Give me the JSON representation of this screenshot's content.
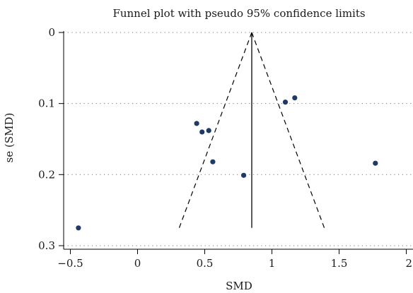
{
  "chart_data": {
    "type": "scatter",
    "title": "Funnel plot with pseudo 95% confidence limits",
    "xlabel": "SMD",
    "ylabel": "se (SMD)",
    "xlim": [
      -0.55,
      2.05
    ],
    "ylim": [
      0,
      0.305
    ],
    "y_reversed": true,
    "x_ticks": [
      -0.5,
      0,
      0.5,
      1,
      1.5,
      2
    ],
    "x_tick_labels": [
      "−0.5",
      "0",
      "0.5",
      "1",
      "1.5",
      "2"
    ],
    "y_ticks": [
      0,
      0.1,
      0.2,
      0.3
    ],
    "y_tick_labels": [
      "0",
      "0.1",
      "0.2",
      "0.3"
    ],
    "grid": "horizontal dotted",
    "pooled_estimate": 0.85,
    "pooled_line": {
      "x": 0.85,
      "se_from": 0,
      "se_to": 0.275
    },
    "confidence_limits": {
      "apex": {
        "x": 0.85,
        "se": 0
      },
      "lower_end": {
        "x": 0.31,
        "se": 0.275
      },
      "upper_end": {
        "x": 1.39,
        "se": 0.275
      }
    },
    "points": [
      {
        "x": -0.44,
        "se": 0.275
      },
      {
        "x": 0.44,
        "se": 0.128
      },
      {
        "x": 0.48,
        "se": 0.14
      },
      {
        "x": 0.53,
        "se": 0.138
      },
      {
        "x": 0.56,
        "se": 0.182
      },
      {
        "x": 0.79,
        "se": 0.201
      },
      {
        "x": 1.1,
        "se": 0.098
      },
      {
        "x": 1.17,
        "se": 0.092
      },
      {
        "x": 1.77,
        "se": 0.184
      }
    ],
    "colors": {
      "point": "#1f3a66",
      "line": "#000000",
      "grid": "#777777"
    }
  }
}
